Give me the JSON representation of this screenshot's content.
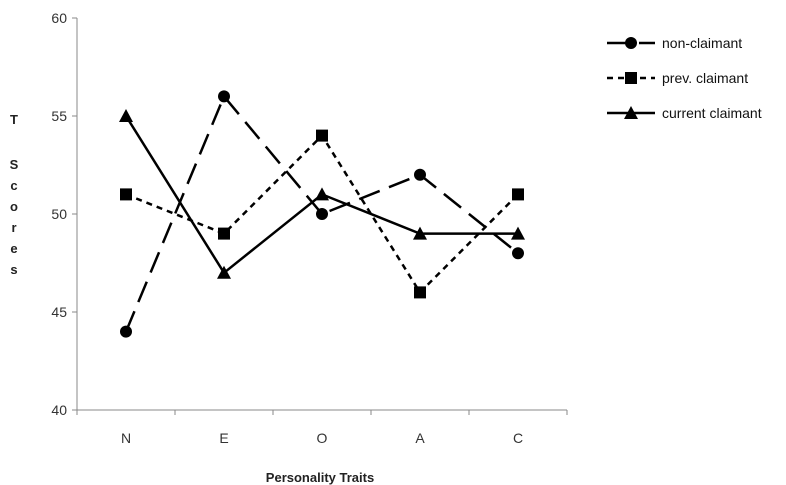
{
  "chart_data": {
    "type": "line",
    "title": "",
    "xlabel": "Personality Traits",
    "ylabel": "T Scores",
    "ylim": [
      40,
      60
    ],
    "yticks": [
      40,
      45,
      50,
      55,
      60
    ],
    "grid": false,
    "legend_position": "top-right",
    "categories": [
      "N",
      "E",
      "O",
      "A",
      "C"
    ],
    "series": [
      {
        "name": "non-claimant",
        "values": [
          44,
          56,
          50,
          52,
          48
        ],
        "marker": "circle",
        "dash": "long-dash",
        "color": "#000000"
      },
      {
        "name": "prev. claimant",
        "values": [
          51,
          49,
          54,
          46,
          51
        ],
        "marker": "square",
        "dash": "short-dash",
        "color": "#000000"
      },
      {
        "name": "current claimant",
        "values": [
          55,
          47,
          51,
          49,
          49
        ],
        "marker": "triangle",
        "dash": "solid",
        "color": "#000000"
      }
    ]
  }
}
